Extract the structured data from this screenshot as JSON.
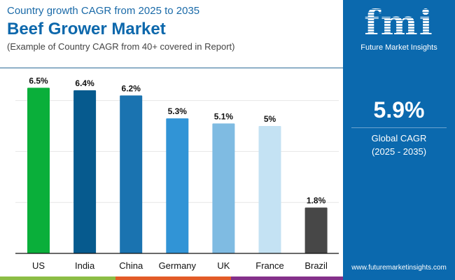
{
  "header": {
    "subtitle": "Country growth CAGR from 2025 to 2035",
    "title": "Beef Grower Market",
    "note": "(Example of Country CAGR from 40+ covered in Report)"
  },
  "panel": {
    "logo_text": "fmi",
    "logo_name": "Future Market Insights",
    "global_cagr": "5.9%",
    "global_label": "Global CAGR",
    "global_period": "(2025 - 2035)",
    "url": "www.futuremarketinsights.com",
    "color": "#0b69ae"
  },
  "chart_data": {
    "type": "bar",
    "categories": [
      "US",
      "India",
      "China",
      "Germany",
      "UK",
      "France",
      "Brazil"
    ],
    "values": [
      6.5,
      6.4,
      6.2,
      5.3,
      5.1,
      5.0,
      1.8
    ],
    "labels": [
      "6.5%",
      "6.4%",
      "6.2%",
      "5.3%",
      "5.1%",
      "5%",
      "1.8%"
    ],
    "colors": [
      "#0aaf3a",
      "#065a8e",
      "#1a73b0",
      "#3194d6",
      "#7fbbe2",
      "#c4e2f3",
      "#474747"
    ],
    "ylim": [
      0,
      6.5
    ],
    "grid": true,
    "gridlines": [
      2,
      4,
      6
    ]
  },
  "stripes": [
    "#8cbd45",
    "#e35b27",
    "#84308a"
  ]
}
